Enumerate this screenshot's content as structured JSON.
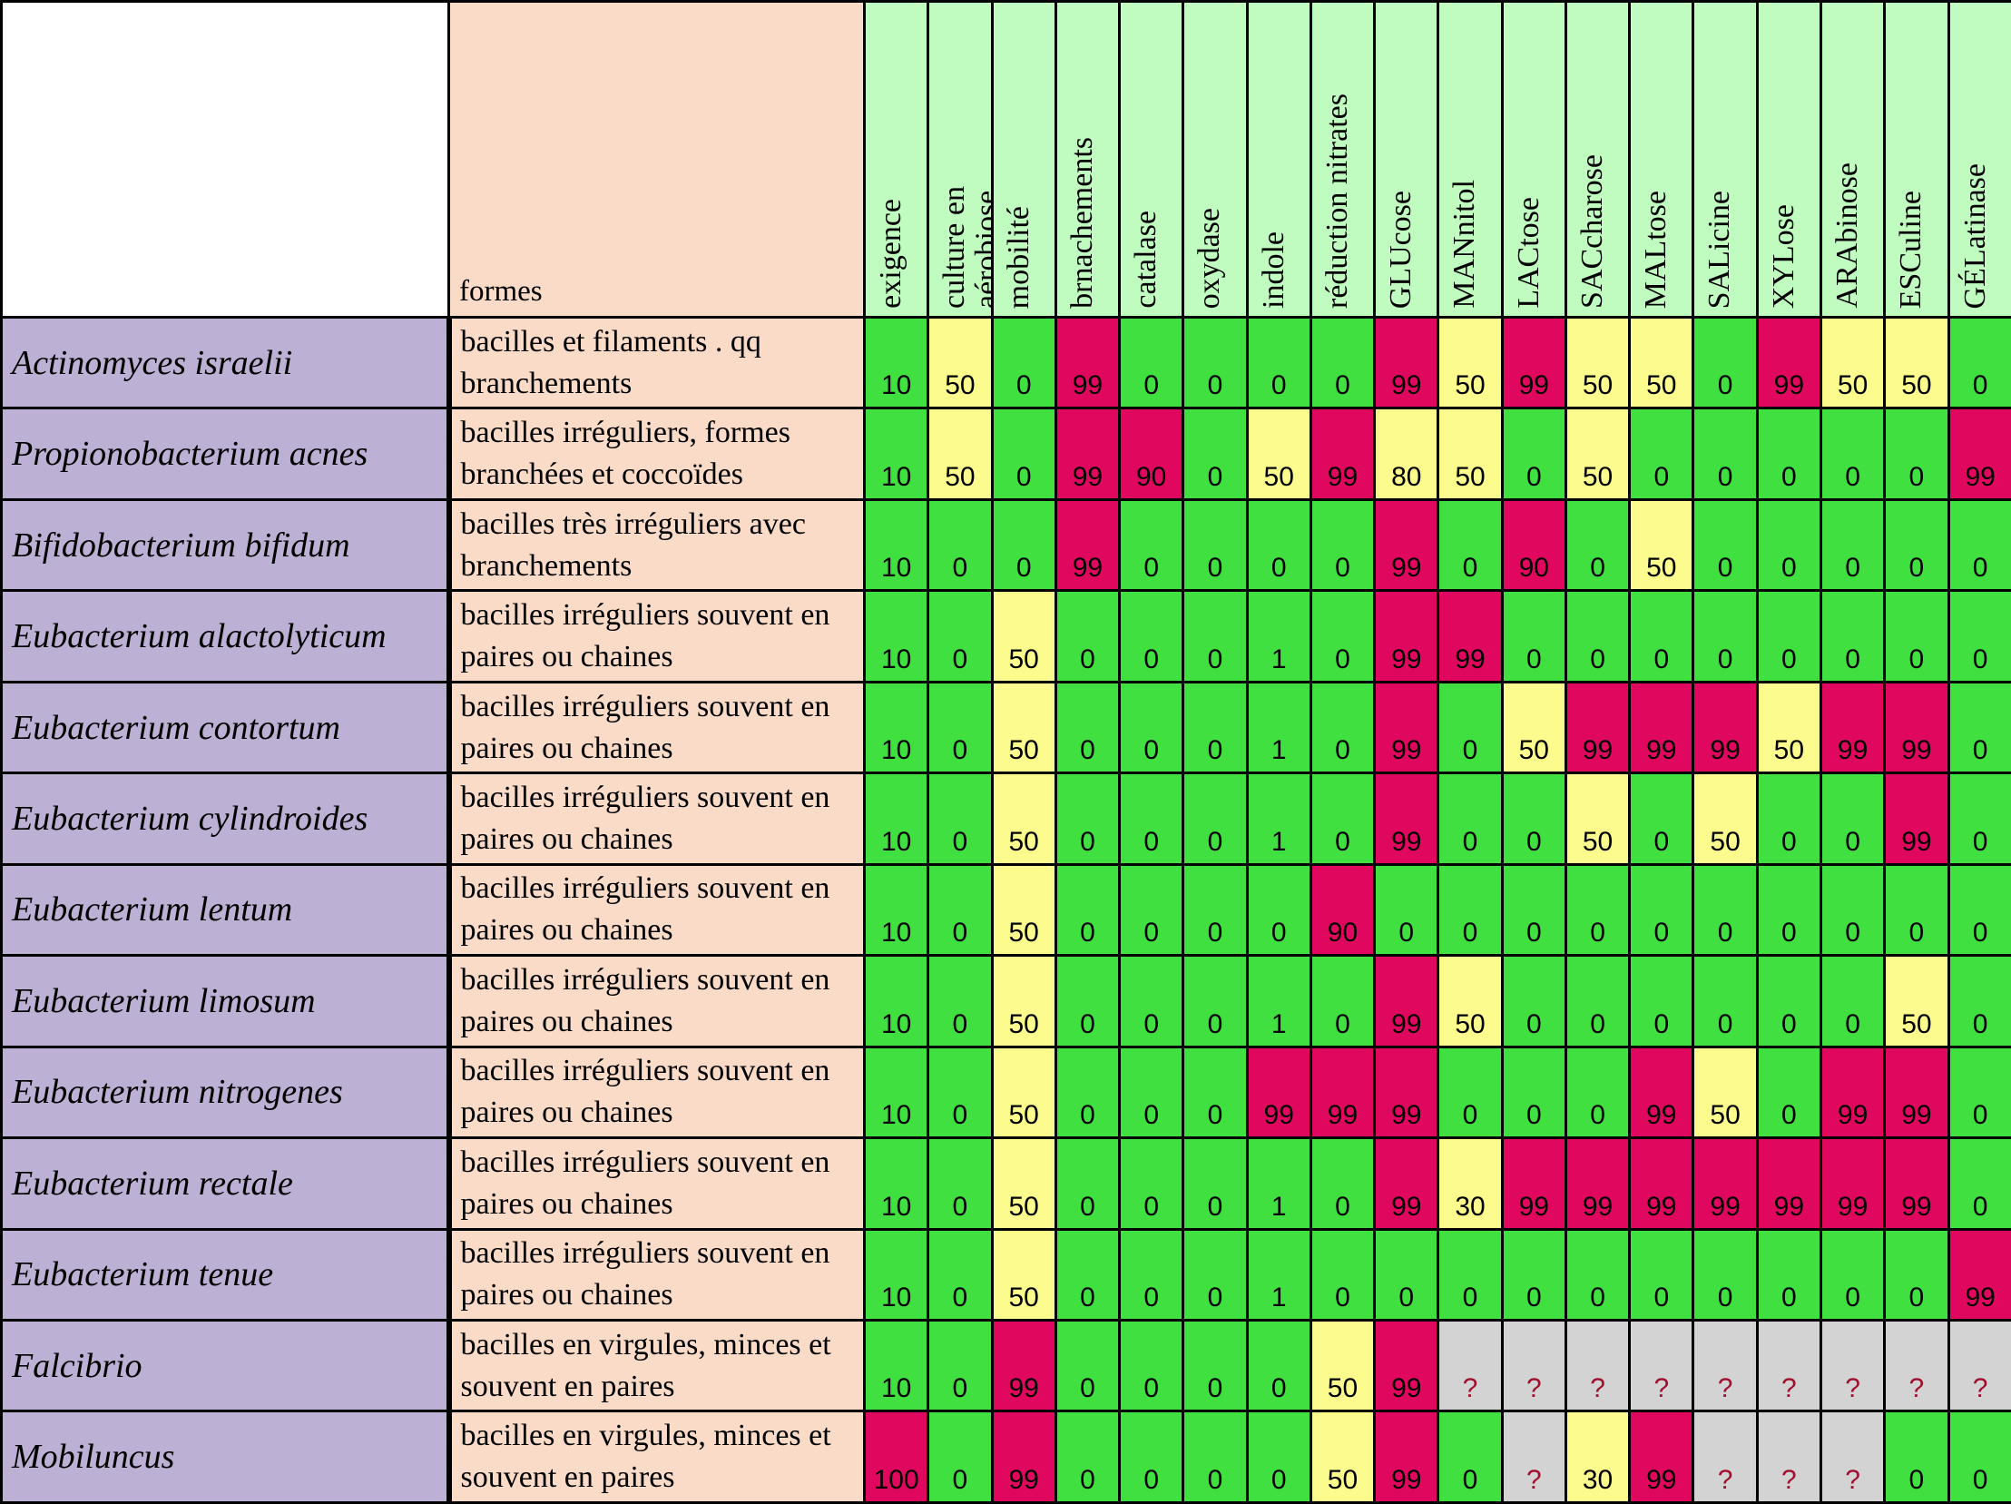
{
  "table": {
    "formes_header": "formes",
    "tests": [
      "exigence",
      "culture en\naérobiose",
      "mobilité",
      "brnachements",
      "catalase",
      "oxydase",
      "indole",
      "réduction nitrates",
      "GLUcose",
      "MANnitol",
      "LACtose",
      "SACcharose",
      "MALtose",
      "SALicine",
      "XYLose",
      "ARAbinose",
      "ESCuline",
      "GÉLatinase"
    ],
    "rows": [
      {
        "species": "Actinomyces israelii",
        "forme": "bacilles et filaments . qq branchements",
        "values": [
          "10",
          "50",
          "0",
          "99",
          "0",
          "0",
          "0",
          "0",
          "99",
          "50",
          "99",
          "50",
          "50",
          "0",
          "99",
          "50",
          "50",
          "0"
        ],
        "colors": [
          "g",
          "y",
          "g",
          "r",
          "g",
          "g",
          "g",
          "g",
          "r",
          "y",
          "r",
          "y",
          "y",
          "g",
          "r",
          "y",
          "y",
          "g"
        ]
      },
      {
        "species": "Propionobacterium acnes",
        "forme": "bacilles irréguliers, formes branchées et coccoïdes",
        "values": [
          "10",
          "50",
          "0",
          "99",
          "90",
          "0",
          "50",
          "99",
          "80",
          "50",
          "0",
          "50",
          "0",
          "0",
          "0",
          "0",
          "0",
          "99"
        ],
        "colors": [
          "g",
          "y",
          "g",
          "r",
          "r",
          "g",
          "y",
          "r",
          "y",
          "y",
          "g",
          "y",
          "g",
          "g",
          "g",
          "g",
          "g",
          "r"
        ]
      },
      {
        "species": "Bifidobacterium bifidum",
        "forme": "bacilles très irréguliers avec branchements",
        "values": [
          "10",
          "0",
          "0",
          "99",
          "0",
          "0",
          "0",
          "0",
          "99",
          "0",
          "90",
          "0",
          "50",
          "0",
          "0",
          "0",
          "0",
          "0"
        ],
        "colors": [
          "g",
          "g",
          "g",
          "r",
          "g",
          "g",
          "g",
          "g",
          "r",
          "g",
          "r",
          "g",
          "y",
          "g",
          "g",
          "g",
          "g",
          "g"
        ]
      },
      {
        "species": "Eubacterium alactolyticum",
        "forme": "bacilles irréguliers souvent en paires ou chaines",
        "values": [
          "10",
          "0",
          "50",
          "0",
          "0",
          "0",
          "1",
          "0",
          "99",
          "99",
          "0",
          "0",
          "0",
          "0",
          "0",
          "0",
          "0",
          "0"
        ],
        "colors": [
          "g",
          "g",
          "y",
          "g",
          "g",
          "g",
          "g",
          "g",
          "r",
          "r",
          "g",
          "g",
          "g",
          "g",
          "g",
          "g",
          "g",
          "g"
        ]
      },
      {
        "species": "Eubacterium contortum",
        "forme": "bacilles irréguliers souvent en paires ou chaines",
        "values": [
          "10",
          "0",
          "50",
          "0",
          "0",
          "0",
          "1",
          "0",
          "99",
          "0",
          "50",
          "99",
          "99",
          "99",
          "50",
          "99",
          "99",
          "0"
        ],
        "colors": [
          "g",
          "g",
          "y",
          "g",
          "g",
          "g",
          "g",
          "g",
          "r",
          "g",
          "y",
          "r",
          "r",
          "r",
          "y",
          "r",
          "r",
          "g"
        ]
      },
      {
        "species": "Eubacterium cylindroides",
        "forme": "bacilles irréguliers souvent en paires ou chaines",
        "values": [
          "10",
          "0",
          "50",
          "0",
          "0",
          "0",
          "1",
          "0",
          "99",
          "0",
          "0",
          "50",
          "0",
          "50",
          "0",
          "0",
          "99",
          "0"
        ],
        "colors": [
          "g",
          "g",
          "y",
          "g",
          "g",
          "g",
          "g",
          "g",
          "r",
          "g",
          "g",
          "y",
          "g",
          "y",
          "g",
          "g",
          "r",
          "g"
        ]
      },
      {
        "species": "Eubacterium lentum",
        "forme": "bacilles irréguliers souvent en paires ou chaines",
        "values": [
          "10",
          "0",
          "50",
          "0",
          "0",
          "0",
          "0",
          "90",
          "0",
          "0",
          "0",
          "0",
          "0",
          "0",
          "0",
          "0",
          "0",
          "0"
        ],
        "colors": [
          "g",
          "g",
          "y",
          "g",
          "g",
          "g",
          "g",
          "r",
          "g",
          "g",
          "g",
          "g",
          "g",
          "g",
          "g",
          "g",
          "g",
          "g"
        ]
      },
      {
        "species": "Eubacterium limosum",
        "forme": "bacilles irréguliers souvent en paires ou chaines",
        "values": [
          "10",
          "0",
          "50",
          "0",
          "0",
          "0",
          "1",
          "0",
          "99",
          "50",
          "0",
          "0",
          "0",
          "0",
          "0",
          "0",
          "50",
          "0"
        ],
        "colors": [
          "g",
          "g",
          "y",
          "g",
          "g",
          "g",
          "g",
          "g",
          "r",
          "y",
          "g",
          "g",
          "g",
          "g",
          "g",
          "g",
          "y",
          "g"
        ]
      },
      {
        "species": "Eubacterium nitrogenes",
        "forme": "bacilles irréguliers souvent en paires ou chaines",
        "values": [
          "10",
          "0",
          "50",
          "0",
          "0",
          "0",
          "99",
          "99",
          "99",
          "0",
          "0",
          "0",
          "99",
          "50",
          "0",
          "99",
          "99",
          "0"
        ],
        "colors": [
          "g",
          "g",
          "y",
          "g",
          "g",
          "g",
          "r",
          "r",
          "r",
          "g",
          "g",
          "g",
          "r",
          "y",
          "g",
          "r",
          "r",
          "g"
        ]
      },
      {
        "species": "Eubacterium rectale",
        "forme": "bacilles irréguliers souvent en paires ou chaines",
        "values": [
          "10",
          "0",
          "50",
          "0",
          "0",
          "0",
          "1",
          "0",
          "99",
          "30",
          "99",
          "99",
          "99",
          "99",
          "99",
          "99",
          "99",
          "0"
        ],
        "colors": [
          "g",
          "g",
          "y",
          "g",
          "g",
          "g",
          "g",
          "g",
          "r",
          "y",
          "r",
          "r",
          "r",
          "r",
          "r",
          "r",
          "r",
          "g"
        ]
      },
      {
        "species": "Eubacterium tenue",
        "forme": "bacilles irréguliers souvent en paires ou chaines",
        "values": [
          "10",
          "0",
          "50",
          "0",
          "0",
          "0",
          "1",
          "0",
          "0",
          "0",
          "0",
          "0",
          "0",
          "0",
          "0",
          "0",
          "0",
          "99"
        ],
        "colors": [
          "g",
          "g",
          "y",
          "g",
          "g",
          "g",
          "g",
          "g",
          "g",
          "g",
          "g",
          "g",
          "g",
          "g",
          "g",
          "g",
          "g",
          "r"
        ]
      },
      {
        "species": "Falcibrio",
        "forme": "bacilles en virgules, minces et souvent en paires",
        "values": [
          "10",
          "0",
          "99",
          "0",
          "0",
          "0",
          "0",
          "50",
          "99",
          "?",
          "?",
          "?",
          "?",
          "?",
          "?",
          "?",
          "?",
          "?"
        ],
        "colors": [
          "g",
          "g",
          "r",
          "g",
          "g",
          "g",
          "g",
          "y",
          "r",
          "q",
          "q",
          "q",
          "q",
          "q",
          "q",
          "q",
          "q",
          "q"
        ]
      },
      {
        "species": "Mobiluncus",
        "forme": "bacilles en virgules, minces et souvent en paires",
        "values": [
          "100",
          "0",
          "99",
          "0",
          "0",
          "0",
          "0",
          "50",
          "99",
          "0",
          "?",
          "30",
          "99",
          "?",
          "?",
          "?",
          "0",
          "0"
        ],
        "colors": [
          "r",
          "g",
          "r",
          "g",
          "g",
          "g",
          "g",
          "y",
          "r",
          "g",
          "q",
          "y",
          "r",
          "q",
          "q",
          "q",
          "g",
          "g"
        ]
      }
    ]
  },
  "legend_colors": {
    "g": "#41e041",
    "y": "#fcfc8e",
    "r": "#e0075e",
    "q": "#d3d3d3"
  }
}
